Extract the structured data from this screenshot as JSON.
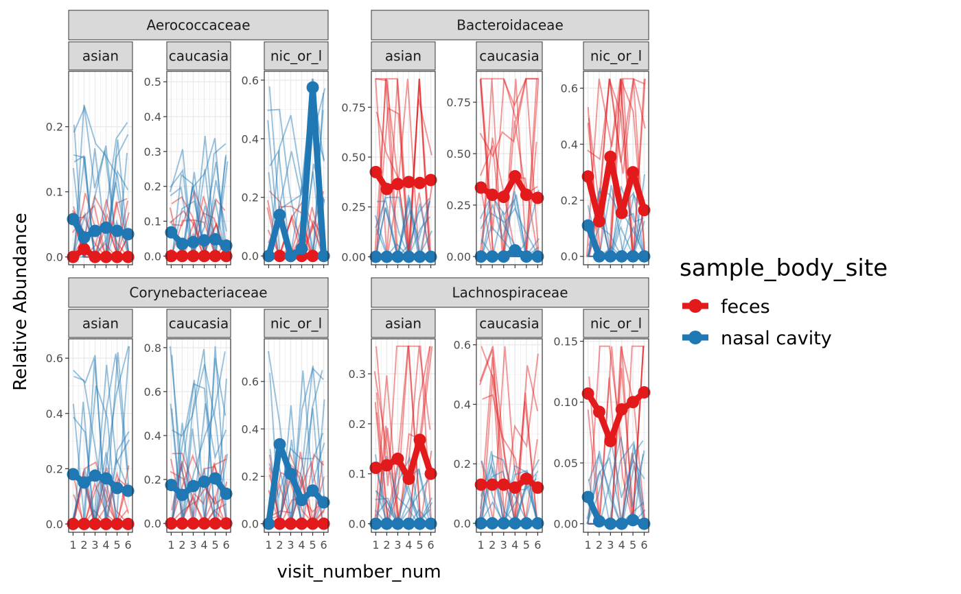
{
  "chart_data": {
    "type": "line",
    "xlabel": "visit_number_num",
    "ylabel": "Relative Abundance",
    "x": [
      1,
      2,
      3,
      4,
      5,
      6
    ],
    "x_tick_labels": [
      "1",
      "2",
      "3",
      "4",
      "5",
      "6"
    ],
    "grid": true,
    "legend": {
      "title": "sample_body_site",
      "position": "right",
      "entries": [
        {
          "name": "feces",
          "color": "#e31a1c"
        },
        {
          "name": "nasal cavity",
          "color": "#1f78b4"
        }
      ]
    },
    "families": [
      {
        "name": "Aerococcaceae",
        "ethnicities": [
          {
            "label": "asian",
            "ylim": [
              -0.012,
              0.285
            ],
            "yticks": [
              0.0,
              0.1,
              0.2
            ],
            "ytick_labels": [
              "0.0",
              "0.1",
              "0.2"
            ],
            "feces": [
              0.0,
              0.012,
              0.0,
              0.0,
              0.0,
              0.0
            ],
            "nasal cavity": [
              0.058,
              0.03,
              0.04,
              0.045,
              0.04,
              0.035
            ]
          },
          {
            "label": "caucasian",
            "ylim": [
              -0.025,
              0.53
            ],
            "yticks": [
              0.0,
              0.1,
              0.2,
              0.3,
              0.4,
              0.5
            ],
            "ytick_labels": [
              "0.0",
              "0.1",
              "0.2",
              "0.3",
              "0.4",
              "0.5"
            ],
            "feces": [
              0.0,
              0.0,
              0.0,
              0.0,
              0.0,
              0.0
            ],
            "nasal cavity": [
              0.068,
              0.035,
              0.04,
              0.045,
              0.048,
              0.03
            ]
          },
          {
            "label": "hispanic_or_latino",
            "ylim": [
              -0.03,
              0.63
            ],
            "yticks": [
              0.0,
              0.2,
              0.4,
              0.6
            ],
            "ytick_labels": [
              "0.0",
              "0.2",
              "0.4",
              "0.6"
            ],
            "feces": [
              0.0,
              0.0,
              0.0,
              0.0,
              0.0,
              0.0
            ],
            "nasal cavity": [
              0.0,
              0.14,
              0.0,
              0.025,
              0.575,
              0.0
            ]
          }
        ]
      },
      {
        "name": "Bacteroidaceae",
        "ethnicities": [
          {
            "label": "asian",
            "ylim": [
              -0.04,
              0.93
            ],
            "yticks": [
              0.0,
              0.25,
              0.5,
              0.75
            ],
            "ytick_labels": [
              "0.00",
              "0.25",
              "0.50",
              "0.75"
            ],
            "feces": [
              0.425,
              0.34,
              0.365,
              0.375,
              0.37,
              0.385
            ],
            "nasal cavity": [
              0.0,
              0.0,
              0.0,
              0.0,
              0.0,
              0.0
            ]
          },
          {
            "label": "caucasian",
            "ylim": [
              -0.04,
              0.9
            ],
            "yticks": [
              0.0,
              0.25,
              0.5,
              0.75
            ],
            "ytick_labels": [
              "0.00",
              "0.25",
              "0.50",
              "0.75"
            ],
            "feces": [
              0.335,
              0.3,
              0.29,
              0.39,
              0.3,
              0.285
            ],
            "nasal cavity": [
              0.0,
              0.0,
              0.0,
              0.03,
              0.0,
              0.0
            ]
          },
          {
            "label": "hispanic_or_latino",
            "ylim": [
              -0.03,
              0.66
            ],
            "yticks": [
              0.0,
              0.2,
              0.4,
              0.6
            ],
            "ytick_labels": [
              "0.0",
              "0.2",
              "0.4",
              "0.6"
            ],
            "feces": [
              0.285,
              0.125,
              0.355,
              0.155,
              0.3,
              0.165
            ],
            "nasal cavity": [
              0.11,
              0.0,
              0.0,
              0.0,
              0.0,
              0.0
            ]
          }
        ]
      },
      {
        "name": "Corynebacteriaceae",
        "ethnicities": [
          {
            "label": "asian",
            "ylim": [
              -0.03,
              0.67
            ],
            "yticks": [
              0.0,
              0.2,
              0.4,
              0.6
            ],
            "ytick_labels": [
              "0.0",
              "0.2",
              "0.4",
              "0.6"
            ],
            "feces": [
              0.0,
              0.0,
              0.0,
              0.0,
              0.0,
              0.0
            ],
            "nasal cavity": [
              0.18,
              0.15,
              0.175,
              0.165,
              0.13,
              0.12
            ]
          },
          {
            "label": "caucasian",
            "ylim": [
              -0.04,
              0.84
            ],
            "yticks": [
              0.0,
              0.2,
              0.4,
              0.6,
              0.8
            ],
            "ytick_labels": [
              "0.0",
              "0.2",
              "0.4",
              "0.6",
              "0.8"
            ],
            "feces": [
              0.0,
              0.0,
              0.0,
              0.0,
              0.0,
              0.0
            ],
            "nasal cavity": [
              0.175,
              0.13,
              0.17,
              0.19,
              0.205,
              0.135
            ]
          },
          {
            "label": "hispanic_or_latino",
            "ylim": [
              -0.036,
              0.78
            ],
            "yticks": [
              0.0,
              0.2,
              0.4,
              0.6
            ],
            "ytick_labels": [
              "0.0",
              "0.2",
              "0.4",
              "0.6"
            ],
            "feces": [
              0.0,
              0.0,
              0.0,
              0.0,
              0.0,
              0.0
            ],
            "nasal cavity": [
              0.0,
              0.335,
              0.21,
              0.1,
              0.14,
              0.09
            ]
          }
        ]
      },
      {
        "name": "Lachnospiraceae",
        "ethnicities": [
          {
            "label": "asian",
            "ylim": [
              -0.017,
              0.37
            ],
            "yticks": [
              0.0,
              0.1,
              0.2,
              0.3
            ],
            "ytick_labels": [
              "0.0",
              "0.1",
              "0.2",
              "0.3"
            ],
            "feces": [
              0.112,
              0.117,
              0.13,
              0.09,
              0.168,
              0.1
            ],
            "nasal cavity": [
              0.0,
              0.0,
              0.0,
              0.0,
              0.0,
              0.0
            ]
          },
          {
            "label": "caucasian",
            "ylim": [
              -0.03,
              0.62
            ],
            "yticks": [
              0.0,
              0.2,
              0.4,
              0.6
            ],
            "ytick_labels": [
              "0.0",
              "0.2",
              "0.4",
              "0.6"
            ],
            "feces": [
              0.13,
              0.13,
              0.13,
              0.12,
              0.15,
              0.12
            ],
            "nasal cavity": [
              0.0,
              0.0,
              0.0,
              0.0,
              0.0,
              0.0
            ]
          },
          {
            "label": "hispanic_or_latino",
            "ylim": [
              -0.007,
              0.152
            ],
            "yticks": [
              0.0,
              0.05,
              0.1,
              0.15
            ],
            "ytick_labels": [
              "0.00",
              "0.05",
              "0.10",
              "0.15"
            ],
            "feces": [
              0.107,
              0.092,
              0.068,
              0.094,
              0.1,
              0.108
            ],
            "nasal cavity": [
              0.022,
              0.002,
              0.0,
              0.0,
              0.003,
              0.0
            ]
          }
        ]
      }
    ]
  }
}
